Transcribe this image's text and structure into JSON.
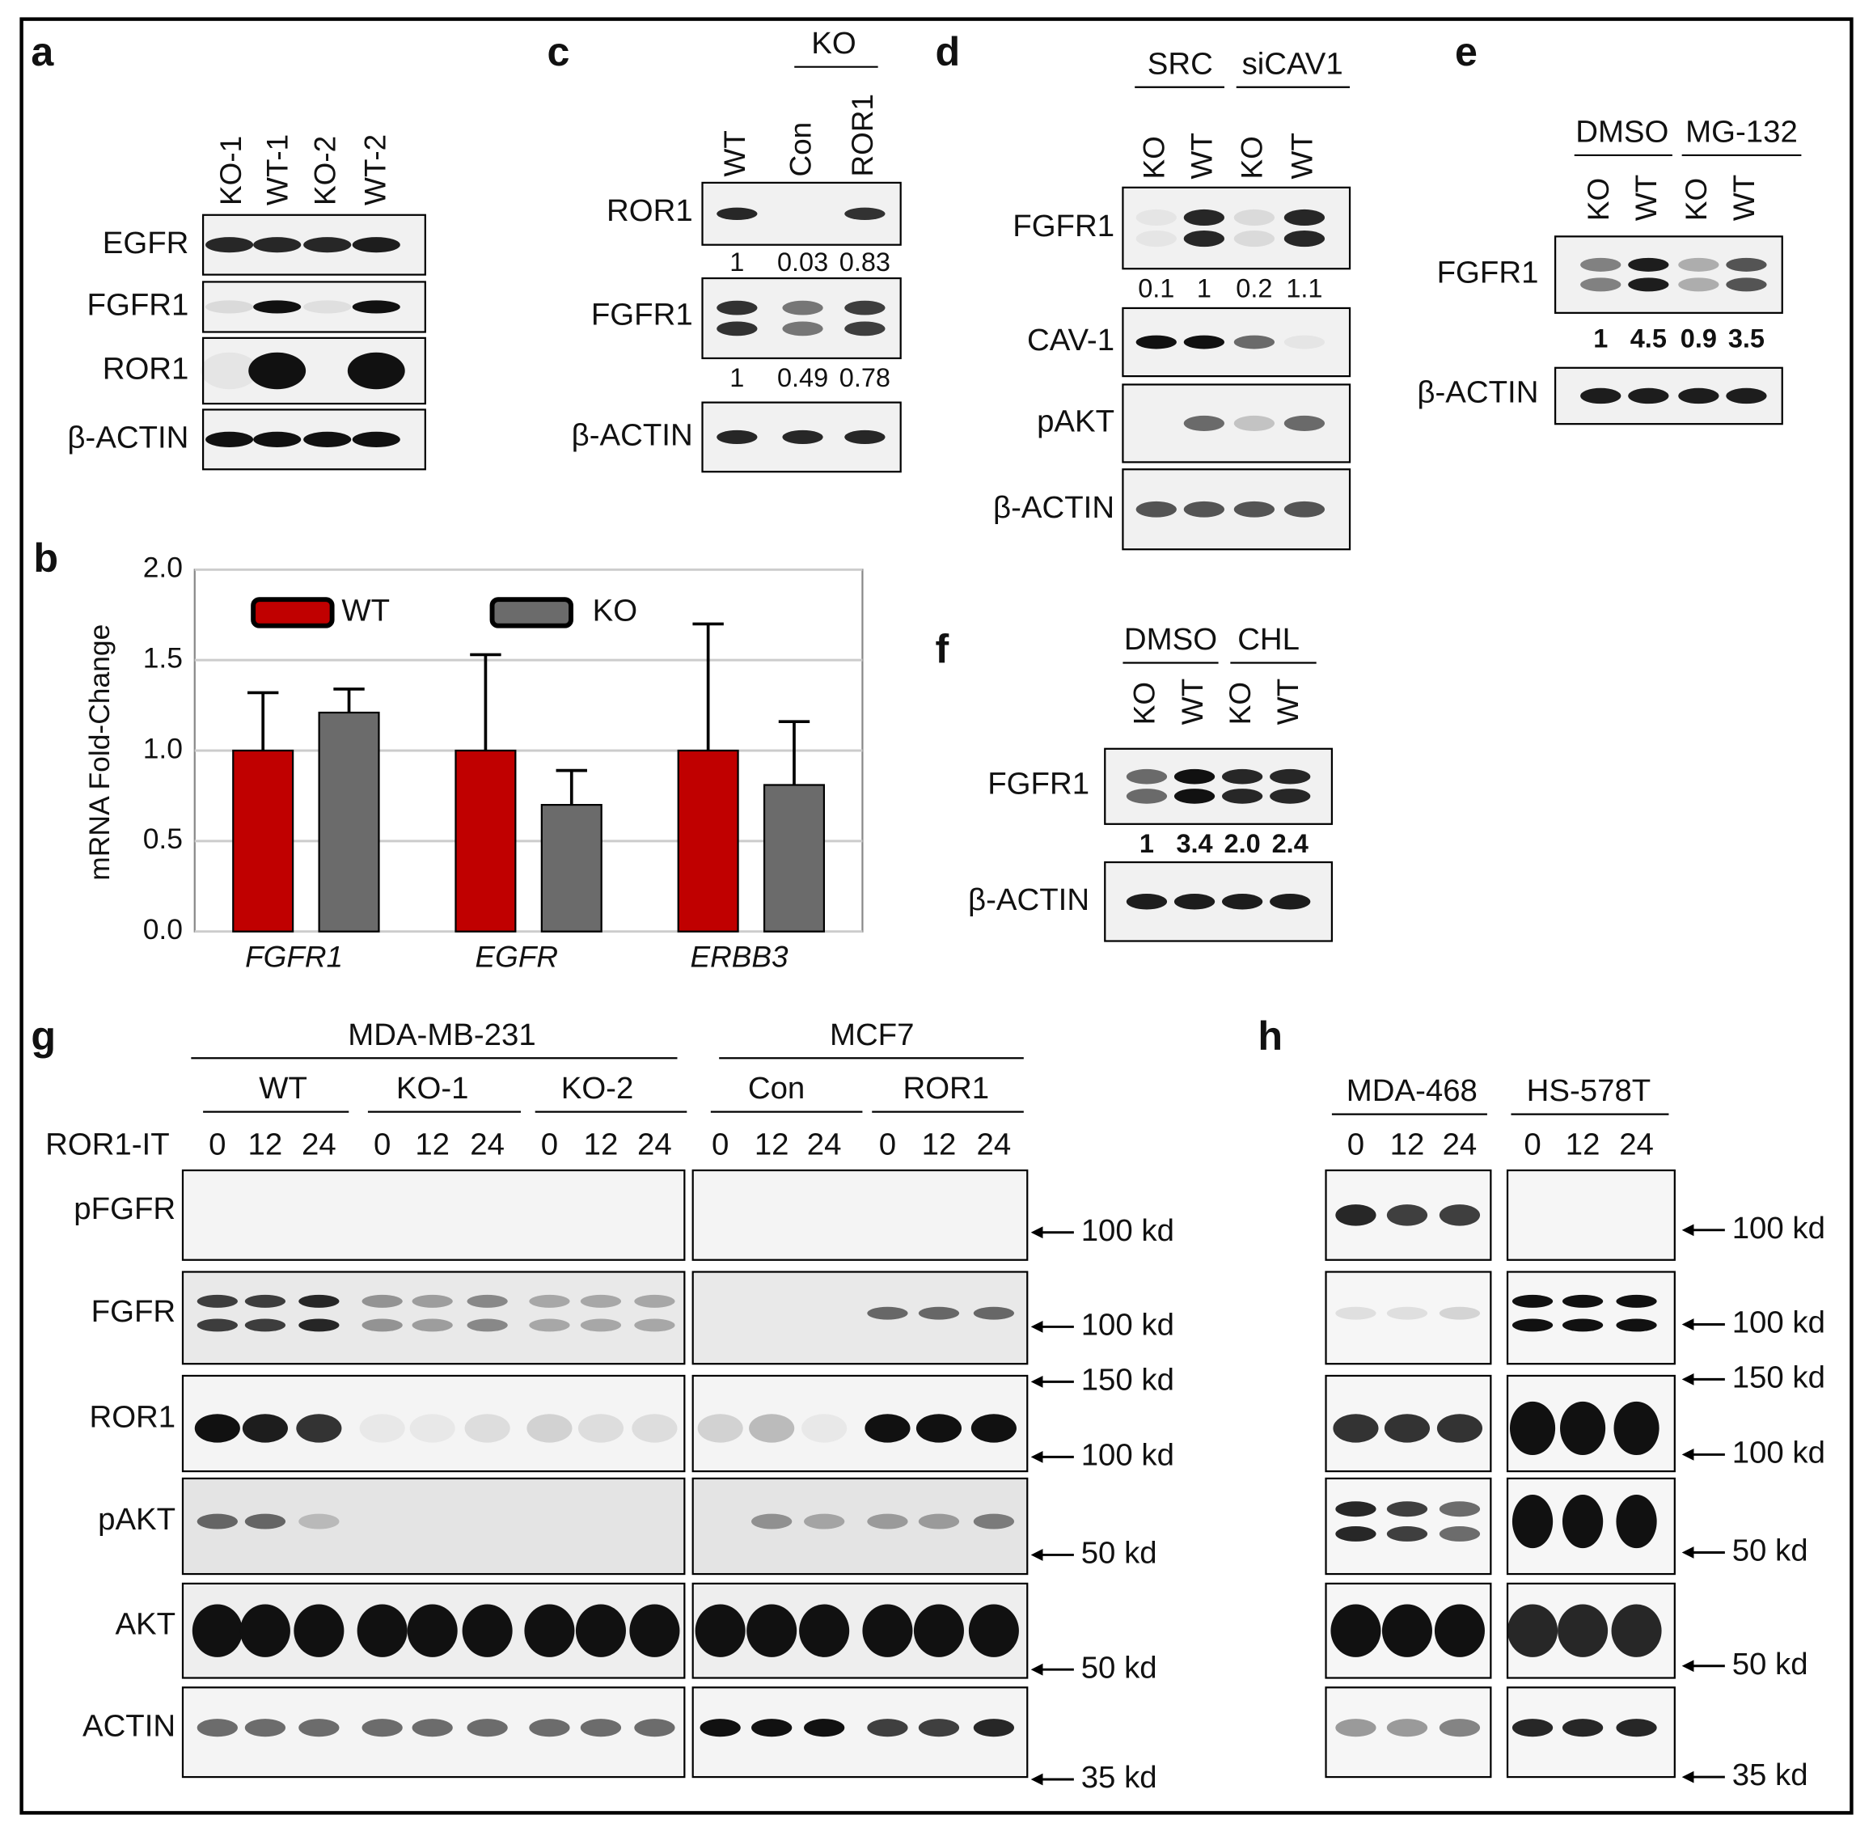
{
  "panel_a": {
    "label": "a",
    "lanes": [
      "KO-1",
      "WT-1",
      "KO-2",
      "WT-2"
    ],
    "rows": [
      "EGFR",
      "FGFR1",
      "ROR1",
      "β-ACTIN"
    ]
  },
  "panel_b": {
    "label": "b"
  },
  "chart_data": {
    "type": "bar",
    "y_label": "mRNA Fold-Change",
    "categories": [
      "FGFR1",
      "EGFR",
      "ERBB3"
    ],
    "series": [
      {
        "name": "WT",
        "color": "#c00000",
        "values": [
          1,
          1,
          1
        ],
        "errors": [
          0.32,
          0.53,
          0.7
        ]
      },
      {
        "name": "KO",
        "color": "#6b6b6b",
        "values": [
          1.21,
          0.7,
          0.81
        ],
        "errors": [
          0.13,
          0.19,
          0.35
        ]
      }
    ],
    "ylim": [
      0,
      2
    ],
    "yticks": [
      {
        "value": 0,
        "label": "0.0"
      },
      {
        "value": 0.5,
        "label": "0.5"
      },
      {
        "value": 1,
        "label": "1.0"
      },
      {
        "value": 1.5,
        "label": "1.5"
      },
      {
        "value": 2,
        "label": "2.0"
      }
    ],
    "grid": true,
    "legend": "top"
  },
  "panel_c": {
    "label": "c",
    "group": "KO",
    "lanes": [
      "WT",
      "Con",
      "ROR1"
    ],
    "rows": [
      "ROR1",
      "FGFR1",
      "β-ACTIN"
    ],
    "quant": [
      [
        "1",
        "0.03",
        "0.83"
      ],
      [
        "1",
        "0.49",
        "0.78"
      ]
    ]
  },
  "panel_d": {
    "label": "d",
    "groups": [
      "SRC",
      "siCAV1"
    ],
    "lanes": [
      "KO",
      "WT",
      "KO",
      "WT"
    ],
    "rows": [
      "FGFR1",
      "CAV-1",
      "pAKT",
      "β-ACTIN"
    ],
    "quant": [
      "0.1",
      "1",
      "0.2",
      "1.1"
    ]
  },
  "panel_e": {
    "label": "e",
    "groups": [
      "DMSO",
      "MG-132"
    ],
    "lanes": [
      "KO",
      "WT",
      "KO",
      "WT"
    ],
    "rows": [
      "FGFR1",
      "β-ACTIN"
    ],
    "quant": [
      "1",
      "4.5",
      "0.9",
      "3.5"
    ]
  },
  "panel_f": {
    "label": "f",
    "groups": [
      "DMSO",
      "CHL"
    ],
    "lanes": [
      "KO",
      "WT",
      "KO",
      "WT"
    ],
    "rows": [
      "FGFR1",
      "β-ACTIN"
    ],
    "quant": [
      "1",
      "3.4",
      "2.0",
      "2.4"
    ]
  },
  "panel_g": {
    "label": "g",
    "cell_lines": [
      "MDA-MB-231",
      "MCF7"
    ],
    "groups": [
      "WT",
      "KO-1",
      "KO-2",
      "Con",
      "ROR1"
    ],
    "treatment": "ROR1-IT",
    "times": [
      "0",
      "12",
      "24"
    ],
    "rows": [
      "pFGFR",
      "FGFR",
      "ROR1",
      "pAKT",
      "AKT",
      "ACTIN"
    ],
    "markers": [
      [
        "100 kd"
      ],
      [
        "100 kd"
      ],
      [
        "150 kd",
        "100 kd"
      ],
      [
        "50 kd"
      ],
      [
        "50 kd"
      ],
      [
        "35 kd"
      ]
    ]
  },
  "panel_h": {
    "label": "h",
    "cell_lines": [
      "MDA-468",
      "HS-578T"
    ],
    "times": [
      "0",
      "12",
      "24"
    ],
    "markers": [
      [
        "100 kd"
      ],
      [
        "100 kd"
      ],
      [
        "150 kd",
        "100 kd"
      ],
      [
        "50 kd"
      ],
      [
        "50 kd"
      ],
      [
        "35 kd"
      ]
    ]
  }
}
